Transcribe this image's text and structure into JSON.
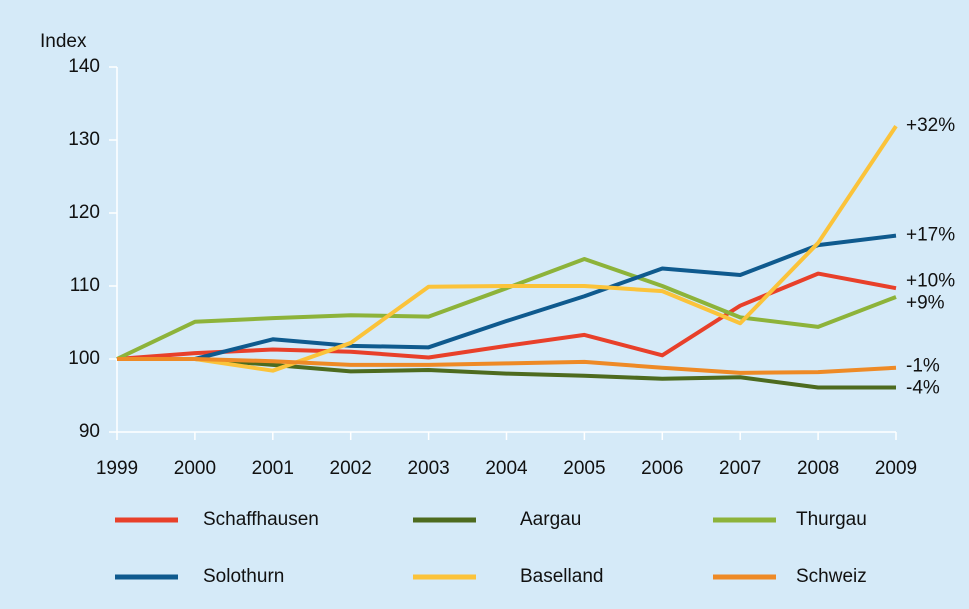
{
  "chart_data": {
    "type": "line",
    "ylabel": "Index",
    "categories": [
      "1999",
      "2000",
      "2001",
      "2002",
      "2003",
      "2004",
      "2005",
      "2006",
      "2007",
      "2008",
      "2009"
    ],
    "ylim": [
      90,
      140
    ],
    "yticks": [
      90,
      100,
      110,
      120,
      130,
      140
    ],
    "legend": "bottom",
    "series": [
      {
        "name": "Schaffhausen",
        "color": "#e8402a",
        "label": "+10%",
        "values": [
          100,
          100.8,
          101.3,
          101,
          100.2,
          101.8,
          103.3,
          100.5,
          107.3,
          111.7,
          109.7
        ]
      },
      {
        "name": "Aargau",
        "color": "#4d6b1f",
        "label": "-4%",
        "values": [
          100,
          100,
          99.2,
          98.3,
          98.5,
          98,
          97.7,
          97.3,
          97.5,
          96.1,
          96.1
        ]
      },
      {
        "name": "Thurgau",
        "color": "#8db33a",
        "label": "+9%",
        "values": [
          100,
          105.1,
          105.6,
          106,
          105.8,
          109.7,
          113.7,
          110,
          105.7,
          104.4,
          108.5
        ]
      },
      {
        "name": "Solothurn",
        "color": "#0f5a8e",
        "label": "+17%",
        "values": [
          100,
          100,
          102.7,
          101.8,
          101.6,
          105.2,
          108.6,
          112.4,
          111.5,
          115.6,
          116.9
        ]
      },
      {
        "name": "Baselland",
        "color": "#fbc33a",
        "label": "+32%",
        "values": [
          100,
          100,
          98.4,
          102.2,
          109.9,
          110,
          110,
          109.3,
          104.9,
          115.9,
          131.9
        ]
      },
      {
        "name": "Schweiz",
        "color": "#ee8a26",
        "label": "-1%",
        "values": [
          100,
          100,
          99.7,
          99.2,
          99.2,
          99.4,
          99.6,
          98.8,
          98.1,
          98.2,
          98.8
        ]
      }
    ]
  }
}
